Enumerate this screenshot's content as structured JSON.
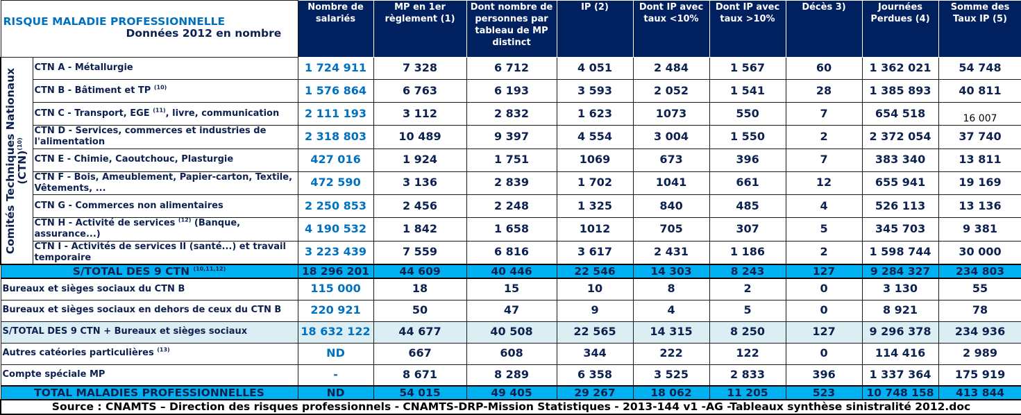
{
  "title": {
    "main": "RISQUE  MALADIE PROFESSIONNELLE",
    "sub": "Données 2012 en nombre"
  },
  "columns": [
    "Nombre de salariés",
    "MP en 1er règlement (1)",
    "Dont nombre de personnes par tableau de MP distinct",
    "IP (2)",
    "Dont IP avec taux <10%",
    "Dont IP avec taux >10%",
    "Décès 3)",
    "Journées Perdues (4)",
    "Somme des Taux IP (5)"
  ],
  "side_label": {
    "line1": "Comités Techniques Nationaux",
    "line2": "(CTN)",
    "sup": "(10)"
  },
  "ctn_rows": [
    {
      "label": "CTN A - Métallurgie",
      "label_sup": "",
      "label_tail": "",
      "values": [
        "1 724 911",
        "7 328",
        "6 712",
        "4 051",
        "2 484",
        "1 567",
        "60",
        "1 362 021",
        "54 748"
      ]
    },
    {
      "label": "CTN B - Bâtiment et TP",
      "label_sup": "(10)",
      "label_tail": "",
      "values": [
        "1 576 864",
        "6 763",
        "6 193",
        "3 593",
        "2 052",
        "1 541",
        "28",
        "1 385 893",
        "40 811"
      ]
    },
    {
      "label": "CTN C - Transport, EGE",
      "label_sup": "(11)",
      "label_tail": ", livre, communication",
      "values": [
        "2 111 193",
        "3 112",
        "2 832",
        "1 623",
        "1073",
        "550",
        "7",
        "654 518",
        "16 007"
      ]
    },
    {
      "label": "CTN D - Services, commerces et industries de l'alimentation",
      "label_sup": "",
      "label_tail": "",
      "values": [
        "2 318 803",
        "10 489",
        "9 397",
        "4 554",
        "3 004",
        "1 550",
        "2",
        "2 372 054",
        "37 740"
      ]
    },
    {
      "label": "CTN E - Chimie, Caoutchouc, Plasturgie",
      "label_sup": "",
      "label_tail": "",
      "values": [
        "427 016",
        "1 924",
        "1 751",
        "1069",
        "673",
        "396",
        "7",
        "383 340",
        "13 811"
      ]
    },
    {
      "label": "CTN F - Bois, Ameublement, Papier-carton, Textile, Vêtements, ...",
      "label_sup": "",
      "label_tail": "",
      "values": [
        "472 590",
        "3 136",
        "2 839",
        "1 702",
        "1041",
        "661",
        "12",
        "655 941",
        "19 169"
      ]
    },
    {
      "label": "CTN G - Commerces non alimentaires",
      "label_sup": "",
      "label_tail": "",
      "values": [
        "2 250 853",
        "2 456",
        "2 248",
        "1 325",
        "840",
        "485",
        "4",
        "526 113",
        "13 136"
      ]
    },
    {
      "label": "CTN H - Activité de services",
      "label_sup": "(12)",
      "label_tail": " (Banque, assurance...)",
      "values": [
        "4 190 532",
        "1 842",
        "1 658",
        "1012",
        "705",
        "307",
        "5",
        "345 703",
        "9 381"
      ]
    },
    {
      "label": "CTN I - Activités de services II (santé...) et travail temporaire",
      "label_sup": "",
      "label_tail": "",
      "values": [
        "3 223 439",
        "7 559",
        "6 816",
        "3 617",
        "2 431",
        "1 186",
        "2",
        "1 598 744",
        "30 000"
      ]
    }
  ],
  "subtotal_ctn": {
    "label": "S/TOTAL DES 9 CTN",
    "label_sup": "(10,11,12)",
    "values": [
      "18 296 201",
      "44 609",
      "40 446",
      "22 546",
      "14 303",
      "8 243",
      "127",
      "9 284 327",
      "234 803"
    ]
  },
  "other_rows": [
    {
      "label": "Bureaux et sièges sociaux du CTN B",
      "label_sup": "",
      "values": [
        "115 000",
        "18",
        "15",
        "10",
        "8",
        "2",
        "0",
        "3 130",
        "55"
      ]
    },
    {
      "label": "Bureaux et sièges sociaux en dehors de ceux du CTN B",
      "label_sup": "",
      "values": [
        "220 921",
        "50",
        "47",
        "9",
        "4",
        "5",
        "0",
        "8 921",
        "78"
      ]
    }
  ],
  "subtotal_bureaux": {
    "label": "S/TOTAL DES 9 CTN + Bureaux et sièges sociaux",
    "values": [
      "18 632 122",
      "44 677",
      "40 508",
      "22 565",
      "14 315",
      "8 250",
      "127",
      "9 296 378",
      "234 936"
    ]
  },
  "extra_rows": [
    {
      "label": "Autres catéories particulières",
      "label_sup": "(13)",
      "values": [
        "ND",
        "667",
        "608",
        "344",
        "222",
        "122",
        "0",
        "114 416",
        "2 989"
      ]
    },
    {
      "label": "Compte spéciale MP",
      "label_sup": "",
      "values": [
        "-",
        "8 671",
        "8 289",
        "6 358",
        "3 525",
        "2 833",
        "396",
        "1 337 364",
        "175 919"
      ]
    }
  ],
  "total": {
    "label": "TOTAL MALADIES PROFESSIONNELLES",
    "values": [
      "ND",
      "54 015",
      "49 405",
      "29 267",
      "18 062",
      "11 205",
      "523",
      "10 748 158",
      "413 844"
    ]
  },
  "source": "Source : CNAMTS – Direction des risques professionnels - CNAMTS-DRP-Mission Statistiques - 2013-144 v1 -AG -Tableaux synthèse sinistralité 2012.doc",
  "colors": {
    "header_bg": "#002060",
    "subtotal_bg": "#00b0f0",
    "light_row_bg": "#dbeef4",
    "accent_blue": "#0070c0"
  }
}
